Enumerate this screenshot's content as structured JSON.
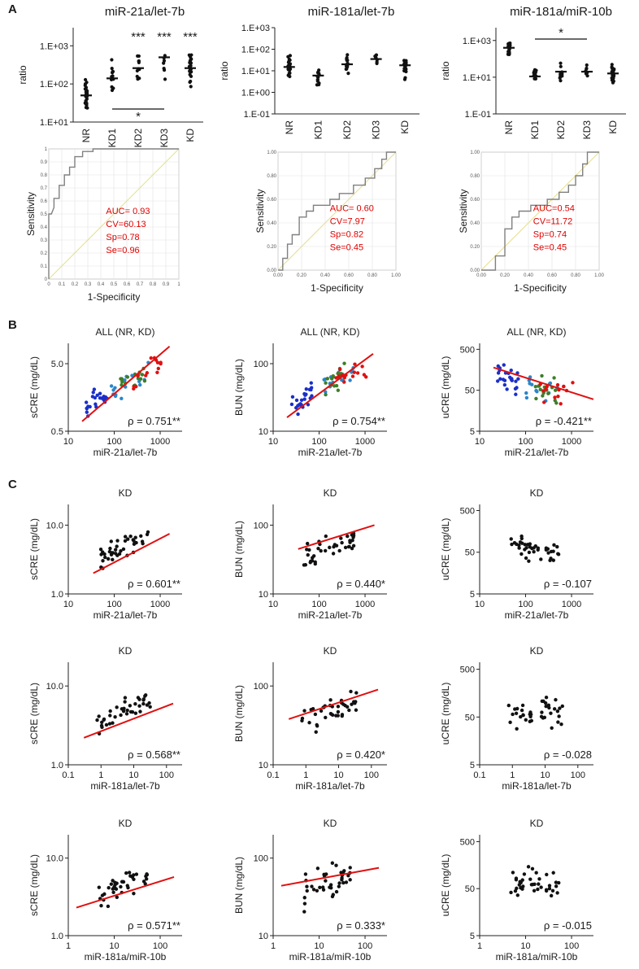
{
  "panel_labels": [
    "A",
    "B",
    "C"
  ],
  "chart_data": [
    {
      "type": "scatter",
      "kind": "dot",
      "panel": "A",
      "title": "miR-21a/let-7b",
      "ylabel": "ratio",
      "ylim": [
        10,
        3000
      ],
      "yscale": "log",
      "ytick_labels": [
        "1.E+01",
        "1.E+02",
        "1.E+03"
      ],
      "categories": [
        "NR",
        "KD1",
        "KD2",
        "KD3",
        "KD"
      ],
      "medians": [
        50,
        140,
        260,
        500,
        260
      ],
      "sig_top": [
        "",
        "",
        "***",
        "***",
        "***"
      ],
      "sig_bar": {
        "from": 1,
        "to": 3,
        "label": "*",
        "position": "below"
      }
    },
    {
      "type": "scatter",
      "kind": "dot",
      "panel": "A",
      "title": "miR-181a/let-7b",
      "ylabel": "ratio",
      "ylim": [
        0.1,
        1000
      ],
      "yscale": "log",
      "ytick_labels": [
        "1.E-01",
        "1.E+00",
        "1.E+01",
        "1.E+02",
        "1.E+03"
      ],
      "categories": [
        "NR",
        "KD1",
        "KD2",
        "KD3",
        "KD"
      ],
      "medians": [
        15,
        6,
        20,
        35,
        18
      ],
      "sig_top": [
        "",
        "",
        "",
        "",
        ""
      ]
    },
    {
      "type": "scatter",
      "kind": "dot",
      "panel": "A",
      "title": "miR-181a/miR-10b",
      "ylabel": "ratio",
      "ylim": [
        0.1,
        5000
      ],
      "yscale": "log",
      "ytick_labels": [
        "1.E-01",
        "1.E+01",
        "1.E+03"
      ],
      "categories": [
        "NR",
        "KD1",
        "KD2",
        "KD3",
        "KD"
      ],
      "medians": [
        400,
        11,
        20,
        20,
        16
      ],
      "sig_top": [
        "",
        "",
        "",
        "",
        ""
      ],
      "sig_bar": {
        "from": 1,
        "to": 3,
        "label": "*",
        "position": "above"
      }
    },
    {
      "type": "line",
      "kind": "roc",
      "panel": "A",
      "xlabel": "1-Specificity",
      "ylabel": "Sensitivity",
      "stats": [
        "AUC= 0.93",
        "CV=60.13",
        "Sp=0.78",
        "Se=0.96"
      ],
      "tick_labels": [
        "0",
        "0.1",
        "0.2",
        "0.3",
        "0.4",
        "0.5",
        "0.6",
        "0.7",
        "0.8",
        "0.9",
        "1"
      ],
      "x": [
        0,
        0,
        0.02,
        0.04,
        0.04,
        0.08,
        0.08,
        0.12,
        0.12,
        0.16,
        0.16,
        0.2,
        0.2,
        0.26,
        0.26,
        0.34,
        0.34,
        1
      ],
      "y": [
        0,
        0.5,
        0.5,
        0.55,
        0.62,
        0.62,
        0.72,
        0.72,
        0.8,
        0.8,
        0.86,
        0.86,
        0.94,
        0.94,
        0.98,
        0.98,
        1,
        1
      ]
    },
    {
      "type": "line",
      "kind": "roc",
      "panel": "A",
      "xlabel": "1-Specificity",
      "ylabel": "Sensitivity",
      "stats": [
        "AUC= 0.60",
        "CV=7.97",
        "Sp=0.82",
        "Se=0.45"
      ],
      "tick_labels": [
        "0.00",
        "0.20",
        "0.40",
        "0.60",
        "0.80",
        "1.00"
      ],
      "x": [
        0,
        0.04,
        0.04,
        0.08,
        0.08,
        0.12,
        0.12,
        0.18,
        0.18,
        0.24,
        0.24,
        0.3,
        0.3,
        0.44,
        0.44,
        0.52,
        0.52,
        0.64,
        0.64,
        0.74,
        0.74,
        0.82,
        0.82,
        0.88,
        0.88,
        0.92,
        0.92,
        1
      ],
      "y": [
        0,
        0,
        0.1,
        0.1,
        0.22,
        0.22,
        0.3,
        0.3,
        0.45,
        0.45,
        0.5,
        0.5,
        0.55,
        0.55,
        0.6,
        0.6,
        0.65,
        0.65,
        0.72,
        0.72,
        0.78,
        0.78,
        0.86,
        0.86,
        0.94,
        0.94,
        1,
        1
      ]
    },
    {
      "type": "line",
      "kind": "roc",
      "panel": "A",
      "xlabel": "1-Specificity",
      "ylabel": "Sensitivity",
      "stats": [
        "AUC=0.54",
        "CV=11.72",
        "Sp=0.74",
        "Se=0.45"
      ],
      "tick_labels": [
        "0.00",
        "0.20",
        "0.40",
        "0.60",
        "0.80",
        "1.00"
      ],
      "x": [
        0,
        0.12,
        0.12,
        0.2,
        0.2,
        0.26,
        0.26,
        0.32,
        0.32,
        0.42,
        0.42,
        0.56,
        0.56,
        0.66,
        0.66,
        0.74,
        0.74,
        0.8,
        0.8,
        0.86,
        0.86,
        0.9,
        0.9,
        1
      ],
      "y": [
        0,
        0,
        0.12,
        0.12,
        0.35,
        0.35,
        0.45,
        0.45,
        0.5,
        0.5,
        0.55,
        0.55,
        0.6,
        0.6,
        0.66,
        0.66,
        0.72,
        0.72,
        0.8,
        0.8,
        0.9,
        0.9,
        1,
        1
      ]
    },
    {
      "type": "scatter",
      "kind": "corr",
      "panel": "B",
      "title": "ALL (NR, KD)",
      "xlabel": "miR-21a/let-7b",
      "ylabel": "sCRE (mg/dL)",
      "xlim": [
        10,
        3000
      ],
      "ylim": [
        0.5,
        10
      ],
      "xticks": [
        10,
        100,
        1000
      ],
      "xtick_labels": [
        "10",
        "100",
        "1000"
      ],
      "yticks": [
        0.5,
        5
      ],
      "ytick_labels": [
        "0.5",
        "5.0"
      ],
      "rho": "ρ = 0.751**",
      "fit": [
        [
          20,
          0.7
        ],
        [
          1600,
          9.0
        ]
      ],
      "colored": true,
      "trend": 1.0
    },
    {
      "type": "scatter",
      "kind": "corr",
      "panel": "B",
      "title": "ALL (NR, KD)",
      "xlabel": "miR-21a/let-7b",
      "ylabel": "BUN (mg/dL)",
      "xlim": [
        10,
        3000
      ],
      "ylim": [
        10,
        200
      ],
      "xticks": [
        10,
        100,
        1000
      ],
      "xtick_labels": [
        "10",
        "100",
        "1000"
      ],
      "yticks": [
        10,
        100
      ],
      "ytick_labels": [
        "10",
        "100"
      ],
      "rho": "ρ = 0.754**",
      "fit": [
        [
          20,
          16
        ],
        [
          1500,
          140
        ]
      ],
      "colored": true,
      "trend": 1.0
    },
    {
      "type": "scatter",
      "kind": "corr",
      "panel": "B",
      "title": "ALL (NR, KD)",
      "xlabel": "miR-21a/let-7b",
      "ylabel": "uCRE (mg/dL)",
      "xlim": [
        10,
        3000
      ],
      "ylim": [
        5,
        700
      ],
      "xticks": [
        10,
        100,
        1000
      ],
      "xtick_labels": [
        "10",
        "100",
        "1000"
      ],
      "yticks": [
        5,
        50,
        500
      ],
      "ytick_labels": [
        "5",
        "50",
        "500"
      ],
      "rho": "ρ = -0.421**",
      "fit": [
        [
          20,
          180
        ],
        [
          3000,
          30
        ]
      ],
      "colored": true,
      "trend": -0.5
    },
    {
      "type": "scatter",
      "kind": "corr",
      "panel": "C",
      "title": "KD",
      "xlabel": "miR-21a/let-7b",
      "ylabel": "sCRE (mg/dL)",
      "xlim": [
        10,
        3000
      ],
      "ylim": [
        1,
        20
      ],
      "xticks": [
        10,
        100,
        1000
      ],
      "xtick_labels": [
        "10",
        "100",
        "1000"
      ],
      "yticks": [
        1,
        10
      ],
      "ytick_labels": [
        "1.0",
        "10.0"
      ],
      "rho": "ρ = 0.601**",
      "fit": [
        [
          35,
          2.0
        ],
        [
          1600,
          7.5
        ]
      ],
      "colored": false,
      "trend": 0.8
    },
    {
      "type": "scatter",
      "kind": "corr",
      "panel": "C",
      "title": "KD",
      "xlabel": "miR-21a/let-7b",
      "ylabel": "BUN (mg/dL)",
      "xlim": [
        10,
        3000
      ],
      "ylim": [
        10,
        200
      ],
      "xticks": [
        10,
        100,
        1000
      ],
      "xtick_labels": [
        "10",
        "100",
        "1000"
      ],
      "yticks": [
        10,
        100
      ],
      "ytick_labels": [
        "10",
        "100"
      ],
      "rho": "ρ = 0.440*",
      "fit": [
        [
          35,
          45
        ],
        [
          1600,
          100
        ]
      ],
      "colored": false,
      "trend": 0.6
    },
    {
      "type": "scatter",
      "kind": "corr",
      "panel": "C",
      "title": "KD",
      "xlabel": "miR-21a/let-7b",
      "ylabel": "uCRE (mg/dL)",
      "xlim": [
        10,
        3000
      ],
      "ylim": [
        5,
        700
      ],
      "xticks": [
        10,
        100,
        1000
      ],
      "xtick_labels": [
        "10",
        "100",
        "1000"
      ],
      "yticks": [
        5,
        50,
        500
      ],
      "ytick_labels": [
        "5",
        "50",
        "500"
      ],
      "rho": "ρ = -0.107",
      "fit": null,
      "colored": false,
      "trend": -0.1
    },
    {
      "type": "scatter",
      "kind": "corr",
      "panel": "C",
      "title": "KD",
      "xlabel": "miR-181a/let-7b",
      "ylabel": "sCRE (mg/dL)",
      "xlim": [
        0.1,
        300
      ],
      "ylim": [
        1,
        20
      ],
      "xticks": [
        0.1,
        1,
        10,
        100
      ],
      "xtick_labels": [
        "0.1",
        "1",
        "10",
        "100"
      ],
      "yticks": [
        1,
        10
      ],
      "ytick_labels": [
        "1.0",
        "10.0"
      ],
      "rho": "ρ = 0.568**",
      "fit": [
        [
          0.3,
          2.2
        ],
        [
          160,
          6.0
        ]
      ],
      "colored": false,
      "trend": 0.8
    },
    {
      "type": "scatter",
      "kind": "corr",
      "panel": "C",
      "title": "KD",
      "xlabel": "miR-181a/let-7b",
      "ylabel": "BUN (mg/dL)",
      "xlim": [
        0.1,
        300
      ],
      "ylim": [
        10,
        200
      ],
      "xticks": [
        0.1,
        1,
        10,
        100
      ],
      "xtick_labels": [
        "0.1",
        "1",
        "10",
        "100"
      ],
      "yticks": [
        10,
        100
      ],
      "ytick_labels": [
        "10",
        "100"
      ],
      "rho": "ρ = 0.420*",
      "fit": [
        [
          0.3,
          38
        ],
        [
          160,
          90
        ]
      ],
      "colored": false,
      "trend": 0.6
    },
    {
      "type": "scatter",
      "kind": "corr",
      "panel": "C",
      "title": "KD",
      "xlabel": "miR-181a/let-7b",
      "ylabel": "uCRE (mg/dL)",
      "xlim": [
        0.1,
        300
      ],
      "ylim": [
        5,
        700
      ],
      "xticks": [
        0.1,
        1,
        10,
        100
      ],
      "xtick_labels": [
        "0.1",
        "1",
        "10",
        "100"
      ],
      "yticks": [
        5,
        50,
        500
      ],
      "ytick_labels": [
        "5",
        "50",
        "500"
      ],
      "rho": "ρ = -0.028",
      "fit": null,
      "colored": false,
      "trend": -0.05
    },
    {
      "type": "scatter",
      "kind": "corr",
      "panel": "C",
      "title": "KD",
      "xlabel": "miR-181a/miR-10b",
      "ylabel": "sCRE (mg/dL)",
      "xlim": [
        1,
        300
      ],
      "ylim": [
        1,
        20
      ],
      "xticks": [
        1,
        10,
        100
      ],
      "xtick_labels": [
        "1",
        "10",
        "100"
      ],
      "yticks": [
        1,
        10
      ],
      "ytick_labels": [
        "1.0",
        "10.0"
      ],
      "rho": "ρ = 0.571**",
      "fit": [
        [
          1.5,
          2.3
        ],
        [
          200,
          5.7
        ]
      ],
      "colored": false,
      "trend": 0.7
    },
    {
      "type": "scatter",
      "kind": "corr",
      "panel": "C",
      "title": "KD",
      "xlabel": "miR-181a/miR-10b",
      "ylabel": "BUN (mg/dL)",
      "xlim": [
        1,
        300
      ],
      "ylim": [
        10,
        200
      ],
      "xticks": [
        1,
        10,
        100
      ],
      "xtick_labels": [
        "1",
        "10",
        "100"
      ],
      "yticks": [
        10,
        100
      ],
      "ytick_labels": [
        "10",
        "100"
      ],
      "rho": "ρ = 0.333*",
      "fit": [
        [
          1.5,
          44
        ],
        [
          200,
          75
        ]
      ],
      "colored": false,
      "trend": 0.5
    },
    {
      "type": "scatter",
      "kind": "corr",
      "panel": "C",
      "title": "KD",
      "xlabel": "miR-181a/miR-10b",
      "ylabel": "uCRE (mg/dL)",
      "xlim": [
        1,
        300
      ],
      "ylim": [
        5,
        700
      ],
      "xticks": [
        1,
        10,
        100
      ],
      "xtick_labels": [
        "1",
        "10",
        "100"
      ],
      "yticks": [
        5,
        50,
        500
      ],
      "ytick_labels": [
        "5",
        "50",
        "500"
      ],
      "rho": "ρ = -0.015",
      "fit": null,
      "colored": false,
      "trend": -0.05
    }
  ],
  "colors": {
    "nr_points": "#1a2fc9",
    "kd1_points": "#2a86c8",
    "kd2_points": "#3e7d2a",
    "kd3_points": "#e01010",
    "black_points": "#111111",
    "fit_line": "#e01010",
    "roc_curve": "#808080",
    "roc_diagonal": "#e6e08a",
    "roc_grid": "#e2e2e2",
    "stat_text": "#e00000"
  }
}
